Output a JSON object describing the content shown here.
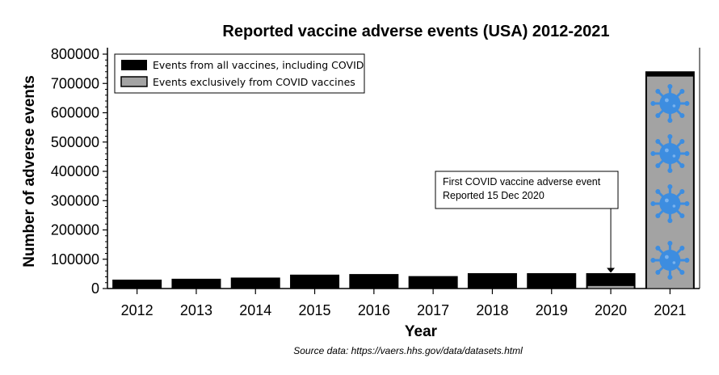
{
  "chart_data": {
    "type": "bar",
    "title": "Reported vaccine adverse events (USA) 2012-2021",
    "xlabel": "Year",
    "ylabel": "Number of adverse events",
    "categories": [
      "2012",
      "2013",
      "2014",
      "2015",
      "2016",
      "2017",
      "2018",
      "2019",
      "2020",
      "2021"
    ],
    "series": [
      {
        "name": "Events from all vaccines, including COVID",
        "values": [
          29000,
          32000,
          36000,
          46000,
          48000,
          41000,
          51000,
          51000,
          51000,
          740000
        ],
        "color": "#000000"
      },
      {
        "name": "Events exclusively from COVID vaccines",
        "values": [
          0,
          0,
          0,
          0,
          0,
          0,
          0,
          0,
          10000,
          725000
        ],
        "color": "#a3a3a3"
      }
    ],
    "ylim": [
      0,
      800000
    ],
    "yticks": [
      "0",
      "100000",
      "200000",
      "300000",
      "400000",
      "500000",
      "600000",
      "700000",
      "800000"
    ],
    "legend_position": "top-left",
    "annotation": {
      "line1": "First COVID vaccine adverse event",
      "line2": "Reported 15 Dec 2020",
      "points_to": "2020"
    },
    "decoration_icon": "virus-icon",
    "grid": false
  },
  "source_text": "Source data: https://vaers.hhs.gov/data/datasets.html"
}
